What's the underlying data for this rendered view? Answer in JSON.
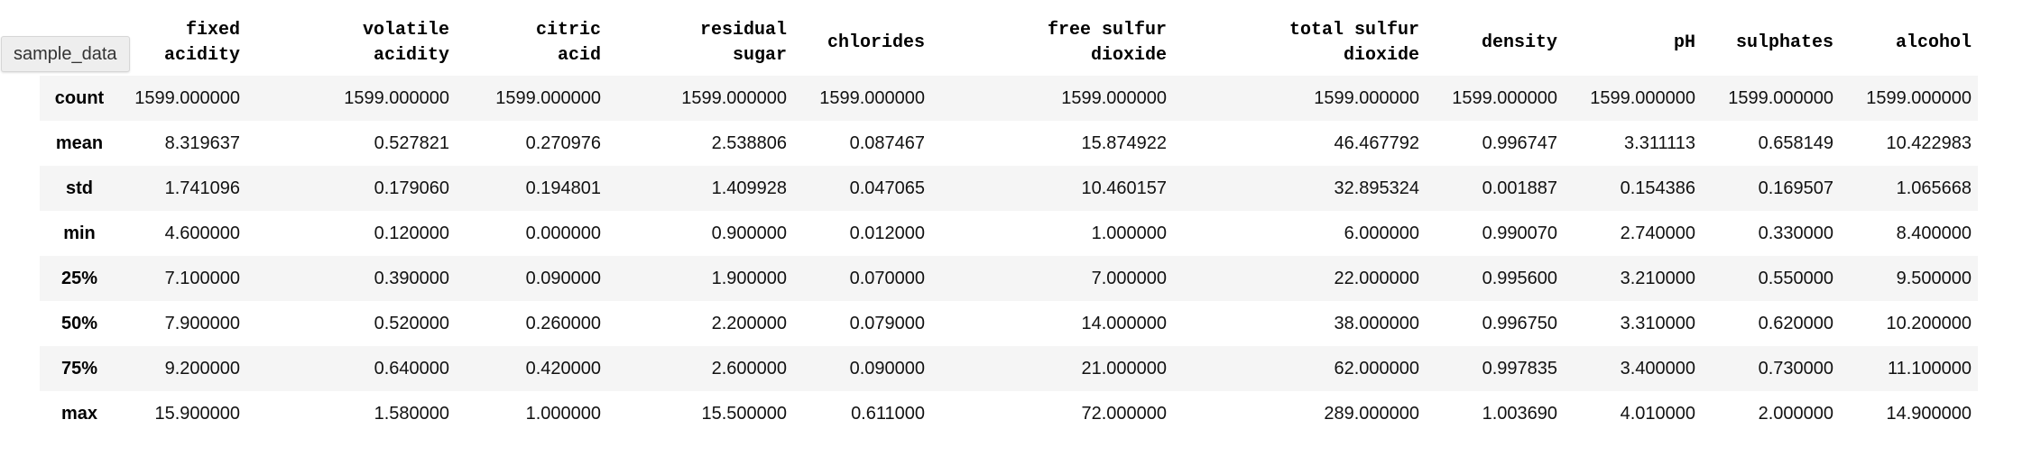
{
  "tag": {
    "label": "sample_data"
  },
  "table": {
    "columns": [
      {
        "line1": "fixed",
        "line2": "acidity"
      },
      {
        "line1": "volatile",
        "line2": "acidity"
      },
      {
        "line1": "citric",
        "line2": "acid"
      },
      {
        "line1": "residual",
        "line2": "sugar"
      },
      {
        "line1": "chlorides",
        "line2": ""
      },
      {
        "line1": "free sulfur",
        "line2": "dioxide"
      },
      {
        "line1": "total sulfur",
        "line2": "dioxide"
      },
      {
        "line1": "density",
        "line2": ""
      },
      {
        "line1": "pH",
        "line2": ""
      },
      {
        "line1": "sulphates",
        "line2": ""
      },
      {
        "line1": "alcohol",
        "line2": ""
      }
    ],
    "rows": [
      {
        "label": "count",
        "values": [
          "1599.000000",
          "1599.000000",
          "1599.000000",
          "1599.000000",
          "1599.000000",
          "1599.000000",
          "1599.000000",
          "1599.000000",
          "1599.000000",
          "1599.000000",
          "1599.000000"
        ]
      },
      {
        "label": "mean",
        "values": [
          "8.319637",
          "0.527821",
          "0.270976",
          "2.538806",
          "0.087467",
          "15.874922",
          "46.467792",
          "0.996747",
          "3.311113",
          "0.658149",
          "10.422983"
        ]
      },
      {
        "label": "std",
        "values": [
          "1.741096",
          "0.179060",
          "0.194801",
          "1.409928",
          "0.047065",
          "10.460157",
          "32.895324",
          "0.001887",
          "0.154386",
          "0.169507",
          "1.065668"
        ]
      },
      {
        "label": "min",
        "values": [
          "4.600000",
          "0.120000",
          "0.000000",
          "0.900000",
          "0.012000",
          "1.000000",
          "6.000000",
          "0.990070",
          "2.740000",
          "0.330000",
          "8.400000"
        ]
      },
      {
        "label": "25%",
        "values": [
          "7.100000",
          "0.390000",
          "0.090000",
          "1.900000",
          "0.070000",
          "7.000000",
          "22.000000",
          "0.995600",
          "3.210000",
          "0.550000",
          "9.500000"
        ]
      },
      {
        "label": "50%",
        "values": [
          "7.900000",
          "0.520000",
          "0.260000",
          "2.200000",
          "0.079000",
          "14.000000",
          "38.000000",
          "0.996750",
          "3.310000",
          "0.620000",
          "10.200000"
        ]
      },
      {
        "label": "75%",
        "values": [
          "9.200000",
          "0.640000",
          "0.420000",
          "2.600000",
          "0.090000",
          "21.000000",
          "62.000000",
          "0.997835",
          "3.400000",
          "0.730000",
          "11.100000"
        ]
      },
      {
        "label": "max",
        "values": [
          "15.900000",
          "1.580000",
          "1.000000",
          "15.500000",
          "0.611000",
          "72.000000",
          "289.000000",
          "1.003690",
          "4.010000",
          "2.000000",
          "14.900000"
        ]
      }
    ]
  }
}
